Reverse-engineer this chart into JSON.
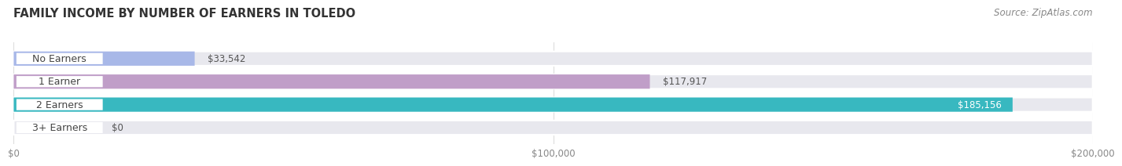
{
  "title": "FAMILY INCOME BY NUMBER OF EARNERS IN TOLEDO",
  "source": "Source: ZipAtlas.com",
  "categories": [
    "No Earners",
    "1 Earner",
    "2 Earners",
    "3+ Earners"
  ],
  "values": [
    33542,
    117917,
    185156,
    0
  ],
  "bar_colors": [
    "#a8b8e8",
    "#c09ec8",
    "#38b8c0",
    "#b8b8e0"
  ],
  "bar_bg_color": "#e8e8ee",
  "label_values": [
    "$33,542",
    "$117,917",
    "$185,156",
    "$0"
  ],
  "xlim": [
    0,
    200000
  ],
  "xticks": [
    0,
    100000,
    200000
  ],
  "xtick_labels": [
    "$0",
    "$100,000",
    "$200,000"
  ],
  "title_fontsize": 10.5,
  "source_fontsize": 8.5,
  "label_fontsize": 8.5,
  "cat_fontsize": 9,
  "background_color": "#ffffff",
  "bar_height": 0.62,
  "fig_width": 14.06,
  "fig_height": 2.33
}
